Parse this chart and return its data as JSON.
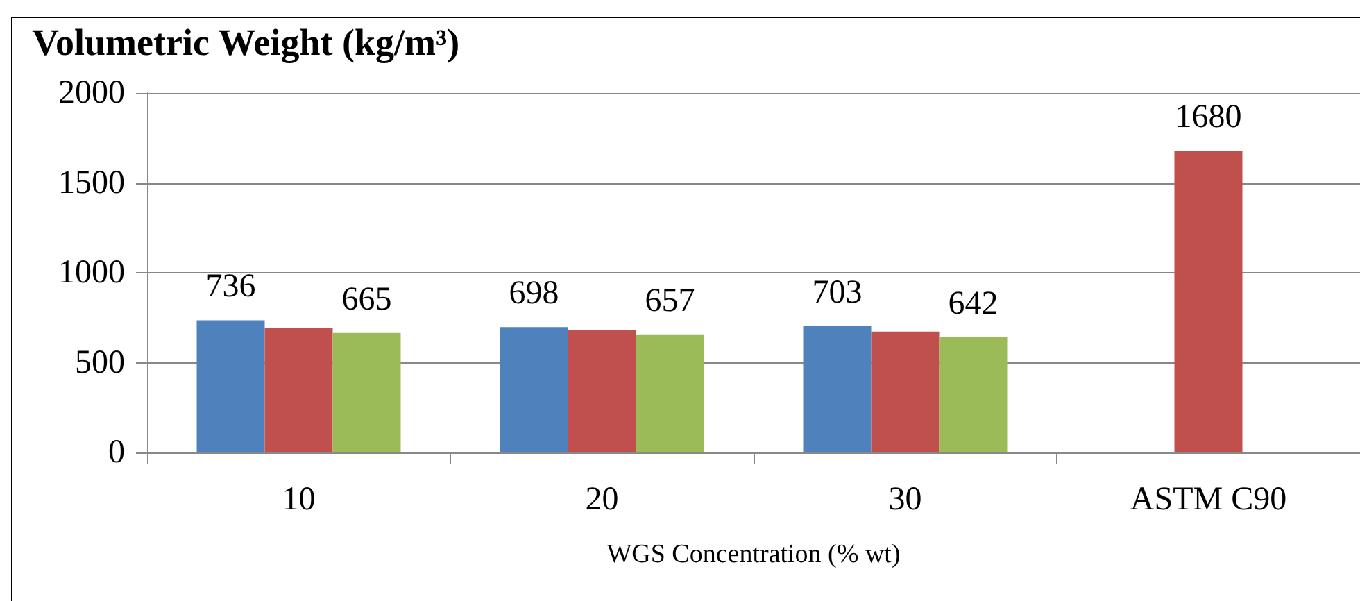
{
  "chart_data": {
    "type": "bar",
    "title": "Volumetric Weight (kg/m³)",
    "xlabel": "WGS Concentration (% wt)",
    "categories": [
      "10",
      "20",
      "30",
      "ASTM C90"
    ],
    "series": [
      {
        "color": "#4f81bd",
        "values": [
          736,
          698,
          703,
          null
        ],
        "value_labels": [
          "736",
          "698",
          "703",
          null
        ]
      },
      {
        "color": "#c0504d",
        "values": [
          692,
          682,
          673,
          1680
        ],
        "value_labels": [
          null,
          null,
          null,
          "1680"
        ]
      },
      {
        "color": "#9bbb59",
        "values": [
          665,
          657,
          642,
          null
        ],
        "value_labels": [
          "665",
          "657",
          "642",
          null
        ]
      }
    ],
    "ylim": [
      0,
      2000
    ],
    "yticks": [
      0,
      500,
      1000,
      1500,
      2000
    ],
    "grid": "y"
  }
}
